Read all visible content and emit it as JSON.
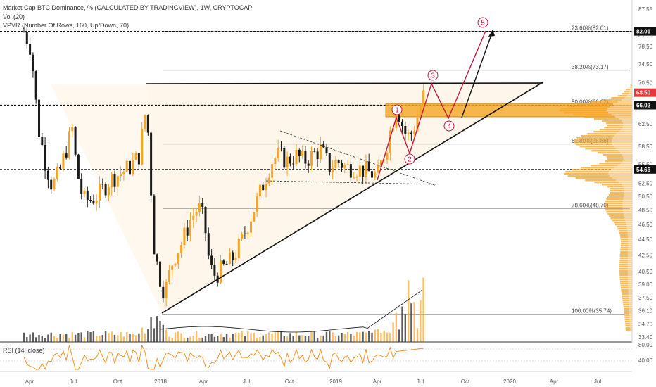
{
  "legend": {
    "title": "Market Cap BTC Dominance, % (CALCULATED BY TRADINGVIEW), 1W, CRYPTOCAP",
    "vol": "Vol (20)",
    "vpvr": "VPVR (Number Of Rows, 160, Up/Down, 70)",
    "rsi": "RSI (14, close)"
  },
  "colors": {
    "up": "#f7a325",
    "down": "#1a1a1a",
    "triangle_fill": "#fdebd0",
    "zone": "#f5a623",
    "wave": "#c0183c",
    "volume_avg": "#111111"
  },
  "chart_data": {
    "type": "candlestick",
    "title": "Market Cap BTC Dominance, % (CALCULATED BY TRADINGVIEW), 1W, CRYPTOCAP",
    "y_axis": {
      "scale": "log",
      "ticks": [
        "87.55",
        "81.10",
        "78.50",
        "74.50",
        "70.50",
        "62.50",
        "58.50",
        "55.50",
        "52.50",
        "50.50",
        "48.50",
        "46.50",
        "44.50",
        "42.50",
        "40.50",
        "39.00",
        "37.50",
        "36.10",
        "34.70",
        "33.40"
      ],
      "highlighted": [
        {
          "label": "82.01",
          "style": "dark"
        },
        {
          "label": "68.50",
          "style": "red"
        },
        {
          "label": "66.02",
          "style": "dark"
        },
        {
          "label": "54.66",
          "style": "dark"
        }
      ]
    },
    "x_axis": {
      "ticks": [
        "Apr",
        "Jul",
        "Oct",
        "2018",
        "Apr",
        "Jul",
        "Oct",
        "2019",
        "Apr",
        "Jul",
        "Oct",
        "2020",
        "Apr",
        "Jul"
      ]
    },
    "horizontal_lines": [
      {
        "price": 82.01,
        "dashed": true
      },
      {
        "price": 66.02,
        "dashed": true
      },
      {
        "price": 54.66,
        "dashed": true
      }
    ],
    "fib_levels": [
      {
        "label": "23.60%(82.01)",
        "price": 82.01
      },
      {
        "label": "38.20%(73.17)",
        "price": 73.17
      },
      {
        "label": "50.00%(66.02)",
        "price": 66.02
      },
      {
        "label": "61.80%(58.88)",
        "price": 58.88
      },
      {
        "label": "78.60%(48.70)",
        "price": 48.7
      },
      {
        "label": "100.00%(35.74)",
        "price": 35.74
      }
    ],
    "wave_labels": [
      "1",
      "2",
      "3",
      "4",
      "5"
    ],
    "rsi_axis": [
      "80.00",
      "40.00"
    ]
  }
}
